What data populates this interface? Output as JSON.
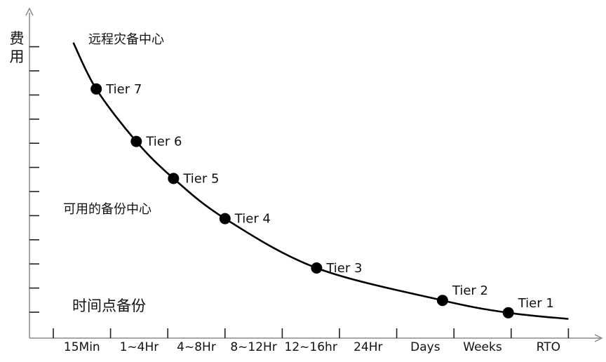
{
  "chart_data": {
    "type": "line",
    "title": "",
    "ylabel": "费用",
    "xlabel": "RTO",
    "categories": [
      "15Min",
      "1~4Hr",
      "4~8Hr",
      "8~12Hr",
      "12~16hr",
      "24Hr",
      "Days",
      "Weeks"
    ],
    "points": [
      {
        "name": "Tier 7",
        "x": 0.25,
        "y": 0.78
      },
      {
        "name": "Tier 6",
        "x": 0.95,
        "y": 0.61
      },
      {
        "name": "Tier 5",
        "x": 1.6,
        "y": 0.49
      },
      {
        "name": "Tier 4",
        "x": 2.5,
        "y": 0.36
      },
      {
        "name": "Tier 3",
        "x": 4.1,
        "y": 0.2
      },
      {
        "name": "Tier 2",
        "x": 6.3,
        "y": 0.095
      },
      {
        "name": "Tier 1",
        "x": 7.45,
        "y": 0.055
      }
    ],
    "curve_extent": {
      "x": [
        -0.15,
        8.5
      ],
      "y": [
        0.93,
        0.035
      ]
    },
    "ylim": [
      0,
      1
    ],
    "annotations": [
      {
        "text": "远程灾备中心",
        "y": 0.91
      },
      {
        "text": "可用的备份中心",
        "y": 0.4
      },
      {
        "text": "时间点备份",
        "y": 0.11
      }
    ],
    "grid": false,
    "colors": {
      "line": "#000000",
      "axis": "#8a8a8a",
      "text": "#111111"
    }
  }
}
